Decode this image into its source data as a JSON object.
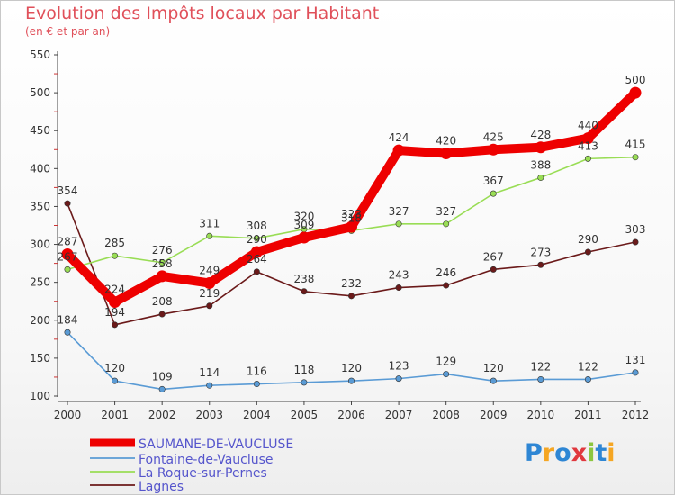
{
  "chart_data": {
    "type": "line",
    "title": "Evolution des Impôts locaux par Habitant",
    "subtitle": "(en € et par an)",
    "x": [
      "2000",
      "2001",
      "2002",
      "2003",
      "2004",
      "2005",
      "2006",
      "2007",
      "2008",
      "2009",
      "2010",
      "2011",
      "2012"
    ],
    "ylim": [
      100,
      550
    ],
    "yticks": [
      100,
      150,
      200,
      250,
      300,
      350,
      400,
      450,
      500,
      550
    ],
    "grid": false,
    "legend_position": "bottom-left",
    "series": [
      {
        "name": "SAUMANE-DE-VAUCLUSE",
        "color": "#ee0000",
        "values": [
          287,
          224,
          258,
          249,
          290,
          309,
          323,
          424,
          420,
          425,
          428,
          440,
          500
        ]
      },
      {
        "name": "Fontaine-de-Vaucluse",
        "color": "#5a9bd5",
        "values": [
          184,
          120,
          109,
          114,
          116,
          118,
          120,
          123,
          129,
          120,
          122,
          122,
          131
        ]
      },
      {
        "name": "La Roque-sur-Pernes",
        "color": "#99dd55",
        "values": [
          267,
          285,
          276,
          311,
          308,
          320,
          318,
          327,
          327,
          367,
          388,
          413,
          415
        ]
      },
      {
        "name": "Lagnes",
        "color": "#6b1a1a",
        "values": [
          354,
          194,
          208,
          219,
          264,
          238,
          232,
          243,
          246,
          267,
          273,
          290,
          303
        ]
      }
    ]
  },
  "logo": {
    "text": "Proxiti",
    "letters": [
      "P",
      "r",
      "o",
      "x",
      "i",
      "t",
      "i"
    ],
    "colors": [
      "#2e86d4",
      "#f5a623",
      "#2e86d4",
      "#e0383e",
      "#8cc63f",
      "#2e86d4",
      "#f5a623"
    ]
  }
}
